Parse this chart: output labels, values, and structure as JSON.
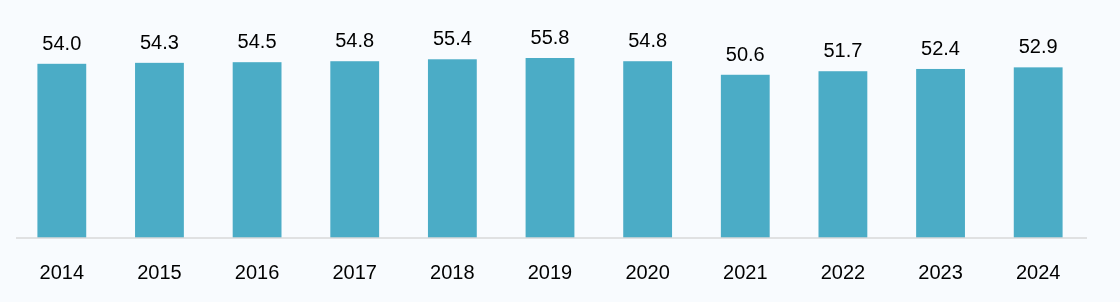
{
  "chart_data": {
    "type": "bar",
    "categories": [
      "2014",
      "2015",
      "2016",
      "2017",
      "2018",
      "2019",
      "2020",
      "2021",
      "2022",
      "2023",
      "2024"
    ],
    "values": [
      54.0,
      54.3,
      54.5,
      54.8,
      55.4,
      55.8,
      54.8,
      50.6,
      51.7,
      52.4,
      52.9
    ],
    "value_labels": [
      "54.0",
      "54.3",
      "54.5",
      "54.8",
      "55.4",
      "55.8",
      "54.8",
      "50.6",
      "51.7",
      "52.4",
      "52.9"
    ],
    "color": "#4bacc6"
  }
}
